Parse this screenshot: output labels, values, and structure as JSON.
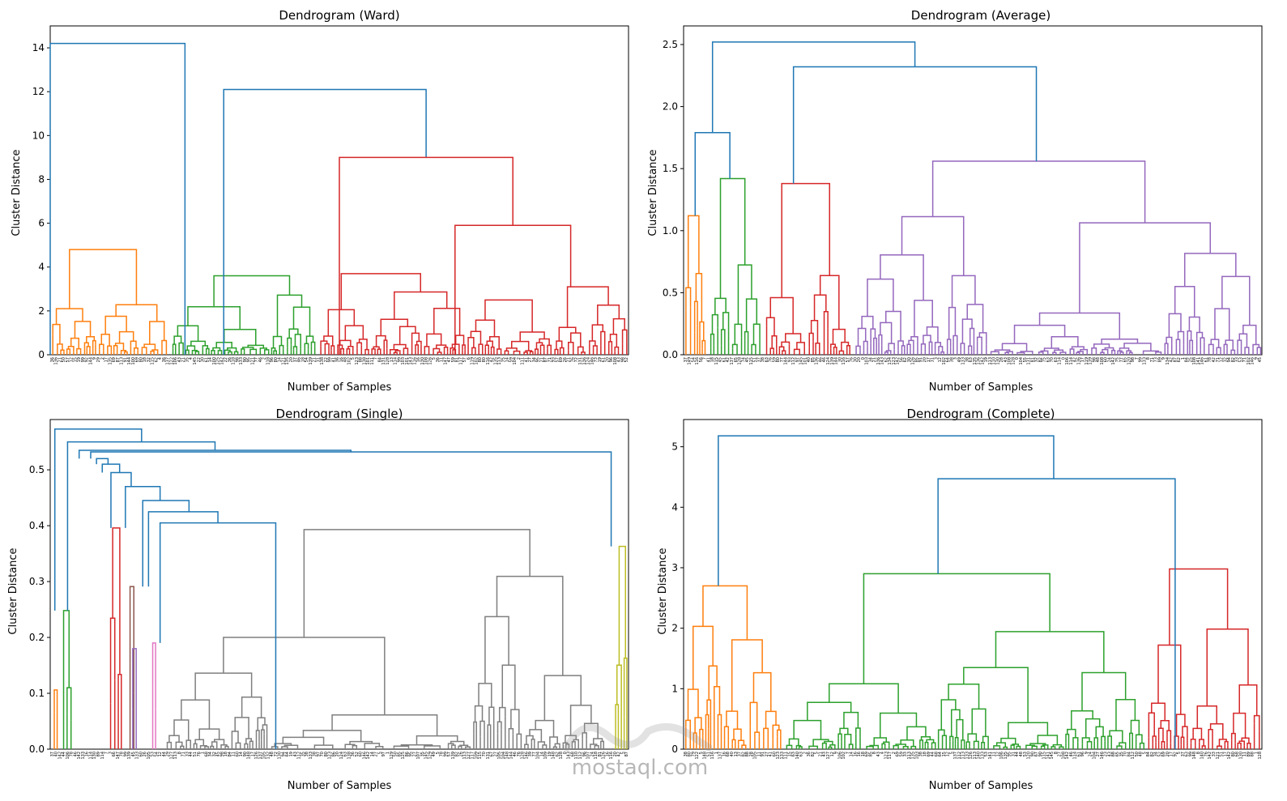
{
  "watermark": {
    "text": "mostaql.com"
  },
  "chart_data": [
    {
      "type": "dendrogram",
      "title": "Dendrogram (Ward)",
      "xlabel": "Number of Samples",
      "ylabel": "Cluster Distance",
      "ylim": [
        0,
        15
      ],
      "yticks": [
        "0",
        "2",
        "4",
        "6",
        "8",
        "10",
        "12",
        "14"
      ],
      "ytick_values": [
        0,
        2,
        4,
        6,
        8,
        10,
        12,
        14
      ],
      "leaf_count": 150,
      "grid": false,
      "top_merges": [
        {
          "from": [
            0.0,
            0.233
          ],
          "height": 14.2,
          "color": "#1f77b4"
        },
        {
          "from": [
            0.3,
            0.65
          ],
          "height": 12.1,
          "color": "#1f77b4"
        },
        {
          "from": [
            0.5,
            0.8
          ],
          "height": 9.0,
          "color": "#d62728"
        },
        {
          "from": [
            0.7,
            0.9
          ],
          "height": 5.9,
          "color": "#d62728"
        }
      ],
      "clusters": [
        {
          "range": [
            0.0,
            0.205
          ],
          "height": 4.8,
          "color": "#ff7f0e"
        },
        {
          "range": [
            0.21,
            0.46
          ],
          "height": 3.6,
          "color": "#2ca02c"
        },
        {
          "range": [
            0.465,
            0.72
          ],
          "height": 3.7,
          "color": "#d62728"
        },
        {
          "range": [
            0.72,
            0.87
          ],
          "height": 2.5,
          "color": "#d62728"
        },
        {
          "range": [
            0.87,
            1.0
          ],
          "height": 3.1,
          "color": "#d62728"
        }
      ],
      "seed": 11
    },
    {
      "type": "dendrogram",
      "title": "Dendrogram (Average)",
      "xlabel": "Number of Samples",
      "ylabel": "Cluster Distance",
      "ylim": [
        0,
        2.65
      ],
      "yticks": [
        "0.0",
        "0.5",
        "1.0",
        "1.5",
        "2.0",
        "2.5"
      ],
      "ytick_values": [
        0,
        0.5,
        1.0,
        1.5,
        2.0,
        2.5
      ],
      "leaf_count": 150,
      "grid": false,
      "top_merges": [
        {
          "from": [
            0.05,
            0.4
          ],
          "height": 2.52,
          "color": "#1f77b4"
        },
        {
          "from": [
            0.19,
            0.61
          ],
          "height": 2.32,
          "color": "#1f77b4"
        },
        {
          "from": [
            0.02,
            0.08
          ],
          "height": 1.79,
          "color": "#1f77b4"
        }
      ],
      "clusters": [
        {
          "range": [
            0.0,
            0.04
          ],
          "height": 1.12,
          "color": "#ff7f0e"
        },
        {
          "range": [
            0.045,
            0.135
          ],
          "height": 1.42,
          "color": "#2ca02c"
        },
        {
          "range": [
            0.14,
            0.29
          ],
          "height": 1.38,
          "color": "#d62728"
        },
        {
          "range": [
            0.295,
            1.0
          ],
          "height": 1.56,
          "color": "#9467bd"
        }
      ],
      "seed": 23
    },
    {
      "type": "dendrogram",
      "title": "Dendrogram (Single)",
      "xlabel": "",
      "ylabel": "Cluster Distance",
      "ylim": [
        0,
        0.59
      ],
      "yticks": [
        "0.0",
        "0.1",
        "0.2",
        "0.3",
        "0.4",
        "0.5"
      ],
      "ytick_values": [
        0,
        0.1,
        0.2,
        0.3,
        0.4,
        0.5
      ],
      "leaf_count": 150,
      "grid": false,
      "top_merges": [
        {
          "from": [
            0.008,
            0.158
          ],
          "height": 0.573,
          "color": "#1f77b4"
        },
        {
          "from": [
            0.03,
            0.285
          ],
          "height": 0.55,
          "color": "#1f77b4"
        },
        {
          "from": [
            0.05,
            0.52
          ],
          "height": 0.535,
          "color": "#1f77b4"
        },
        {
          "from": [
            0.07,
            0.97
          ],
          "height": 0.532,
          "color": "#1f77b4"
        },
        {
          "from": [
            0.08,
            0.1
          ],
          "height": 0.52,
          "color": "#1f77b4"
        },
        {
          "from": [
            0.09,
            0.12
          ],
          "height": 0.51,
          "color": "#1f77b4"
        },
        {
          "from": [
            0.105,
            0.14
          ],
          "height": 0.495,
          "color": "#1f77b4"
        },
        {
          "from": [
            0.13,
            0.19
          ],
          "height": 0.47,
          "color": "#1f77b4"
        },
        {
          "from": [
            0.16,
            0.24
          ],
          "height": 0.445,
          "color": "#1f77b4"
        },
        {
          "from": [
            0.17,
            0.29
          ],
          "height": 0.425,
          "color": "#1f77b4"
        },
        {
          "from": [
            0.19,
            0.39
          ],
          "height": 0.405,
          "color": "#1f77b4"
        }
      ],
      "clusters": [
        {
          "range": [
            0.005,
            0.015
          ],
          "height": 0.106,
          "color": "#ff7f0e"
        },
        {
          "range": [
            0.02,
            0.04
          ],
          "height": 0.248,
          "color": "#2ca02c"
        },
        {
          "range": [
            0.1,
            0.125
          ],
          "height": 0.396,
          "color": "#d62728"
        },
        {
          "range": [
            0.135,
            0.148
          ],
          "height": 0.291,
          "color": "#8c564b"
        },
        {
          "range": [
            0.14,
            0.152
          ],
          "height": 0.18,
          "color": "#9467bd"
        },
        {
          "range": [
            0.175,
            0.185
          ],
          "height": 0.19,
          "color": "#e377c2"
        },
        {
          "range": [
            0.2,
            0.96
          ],
          "height": 0.393,
          "color": "#7f7f7f"
        },
        {
          "range": [
            0.975,
            1.0
          ],
          "height": 0.363,
          "color": "#bcbd22"
        }
      ],
      "seed": 37
    },
    {
      "type": "dendrogram",
      "title": "Dendrogram (Complete)",
      "xlabel": "Number of Samples",
      "ylabel": "Cluster Distance",
      "ylim": [
        0,
        5.45
      ],
      "yticks": [
        "0",
        "1",
        "2",
        "3",
        "4",
        "5"
      ],
      "ytick_values": [
        0,
        1,
        2,
        3,
        4,
        5
      ],
      "leaf_count": 150,
      "grid": false,
      "top_merges": [
        {
          "from": [
            0.06,
            0.64
          ],
          "height": 5.18,
          "color": "#1f77b4"
        },
        {
          "from": [
            0.44,
            0.85
          ],
          "height": 4.47,
          "color": "#1f77b4"
        }
      ],
      "clusters": [
        {
          "range": [
            0.0,
            0.17
          ],
          "height": 2.7,
          "color": "#ff7f0e"
        },
        {
          "range": [
            0.175,
            0.8
          ],
          "height": 2.9,
          "color": "#2ca02c"
        },
        {
          "range": [
            0.8,
            1.0
          ],
          "height": 2.98,
          "color": "#d62728"
        }
      ],
      "seed": 51
    }
  ]
}
